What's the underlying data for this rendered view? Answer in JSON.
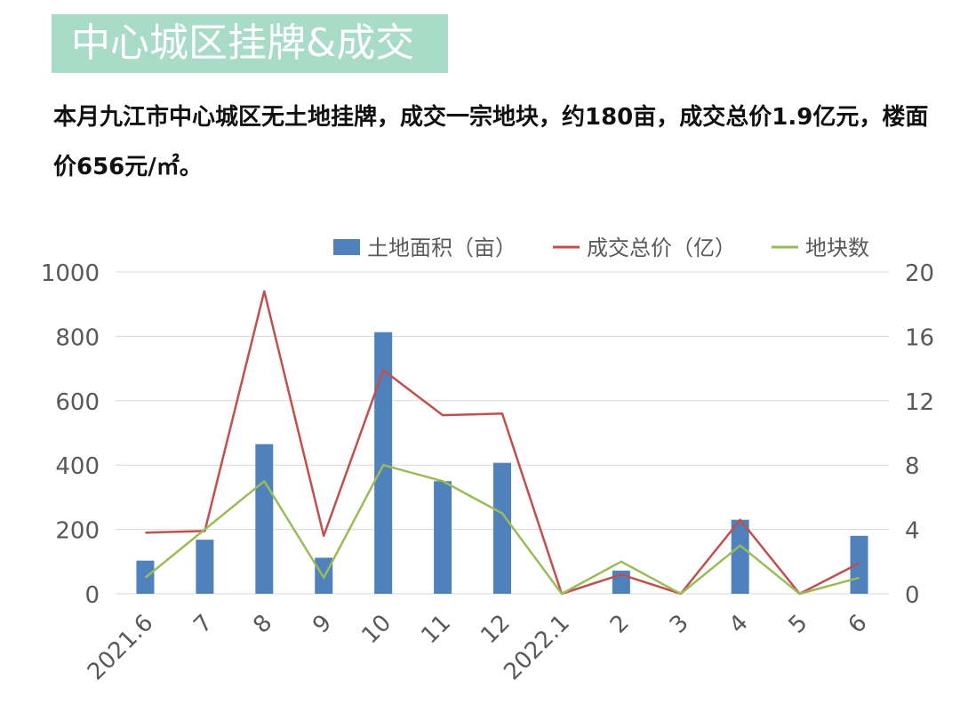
{
  "header": {
    "title": "中心城区挂牌&成交",
    "summary": "本月九江市中心城区无土地挂牌，成交一宗地块，约180亩，成交总价1.9亿元，楼面价656元/㎡。"
  },
  "colors": {
    "title_bg": "#a8dcc8",
    "bar": "#4f81bd",
    "total_price_line": "#c0504d",
    "parcel_count_line": "#9bbb59",
    "grid": "#d9d9d9",
    "tick": "#595959"
  },
  "chart_data": {
    "type": "bar",
    "categories": [
      "2021.6",
      "7",
      "8",
      "9",
      "10",
      "11",
      "12",
      "2022.1",
      "2",
      "3",
      "4",
      "5",
      "6"
    ],
    "series": [
      {
        "name": "土地面积（亩）",
        "type": "bar",
        "axis": "left",
        "values": [
          103,
          168,
          465,
          112,
          813,
          350,
          407,
          0,
          72,
          0,
          230,
          0,
          180
        ]
      },
      {
        "name": "成交总价（亿）",
        "type": "line",
        "axis": "right",
        "values": [
          3.8,
          3.9,
          18.8,
          3.6,
          13.9,
          11.1,
          11.2,
          0,
          1.2,
          0,
          4.6,
          0,
          1.9
        ]
      },
      {
        "name": "地块数",
        "type": "line",
        "axis": "right",
        "values": [
          1,
          4,
          7,
          1,
          8,
          7,
          5,
          0,
          2,
          0,
          3,
          0,
          1
        ]
      }
    ],
    "y_left": {
      "range": [
        0,
        1000
      ],
      "ticks": [
        0,
        200,
        400,
        600,
        800,
        1000
      ]
    },
    "y_right": {
      "range": [
        0,
        20
      ],
      "ticks": [
        0,
        4,
        8,
        12,
        16,
        20
      ]
    },
    "grid": true,
    "legend": "top-right"
  }
}
